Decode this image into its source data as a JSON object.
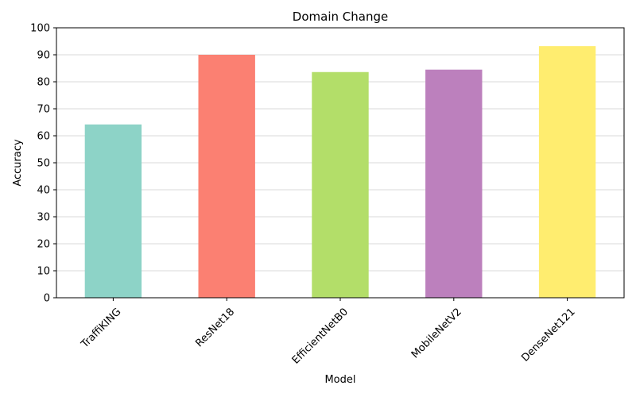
{
  "chart_data": {
    "type": "bar",
    "title": "Domain Change",
    "xlabel": "Model",
    "ylabel": "Accuracy",
    "categories": [
      "TraffiKING",
      "ResNet18",
      "EfficientNetB0",
      "MobileNetV2",
      "DenseNet121"
    ],
    "values": [
      64.2,
      90.0,
      83.6,
      84.5,
      93.2
    ],
    "colors": [
      "#8dd3c7",
      "#fb8072",
      "#b3de69",
      "#bc80bd",
      "#ffed6f"
    ],
    "ylim": [
      0,
      100
    ],
    "yticks": [
      0,
      10,
      20,
      30,
      40,
      50,
      60,
      70,
      80,
      90,
      100
    ],
    "grid": "horizontal",
    "xtick_rotation": 45
  }
}
